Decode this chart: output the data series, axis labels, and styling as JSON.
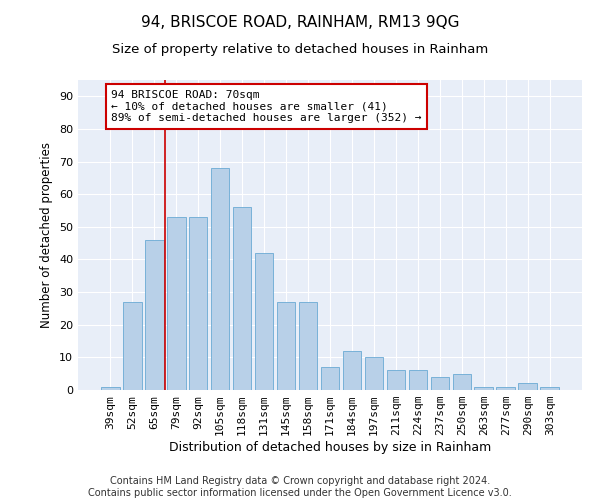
{
  "title": "94, BRISCOE ROAD, RAINHAM, RM13 9QG",
  "subtitle": "Size of property relative to detached houses in Rainham",
  "xlabel": "Distribution of detached houses by size in Rainham",
  "ylabel": "Number of detached properties",
  "categories": [
    "39sqm",
    "52sqm",
    "65sqm",
    "79sqm",
    "92sqm",
    "105sqm",
    "118sqm",
    "131sqm",
    "145sqm",
    "158sqm",
    "171sqm",
    "184sqm",
    "197sqm",
    "211sqm",
    "224sqm",
    "237sqm",
    "250sqm",
    "263sqm",
    "277sqm",
    "290sqm",
    "303sqm"
  ],
  "values": [
    1,
    27,
    46,
    53,
    53,
    68,
    56,
    42,
    27,
    27,
    7,
    12,
    10,
    6,
    6,
    4,
    5,
    1,
    1,
    2,
    1
  ],
  "bar_color": "#b8d0e8",
  "bar_edge_color": "#6aaad4",
  "vline_x_index": 2.5,
  "vline_color": "#cc0000",
  "annotation_text": "94 BRISCOE ROAD: 70sqm\n← 10% of detached houses are smaller (41)\n89% of semi-detached houses are larger (352) →",
  "annotation_box_color": "#ffffff",
  "annotation_box_edge_color": "#cc0000",
  "ylim": [
    0,
    95
  ],
  "yticks": [
    0,
    10,
    20,
    30,
    40,
    50,
    60,
    70,
    80,
    90
  ],
  "background_color": "#e8eef8",
  "grid_color": "#ffffff",
  "footer_text": "Contains HM Land Registry data © Crown copyright and database right 2024.\nContains public sector information licensed under the Open Government Licence v3.0.",
  "title_fontsize": 11,
  "subtitle_fontsize": 9.5,
  "xlabel_fontsize": 9,
  "ylabel_fontsize": 8.5,
  "tick_fontsize": 8,
  "annotation_fontsize": 8,
  "footer_fontsize": 7
}
